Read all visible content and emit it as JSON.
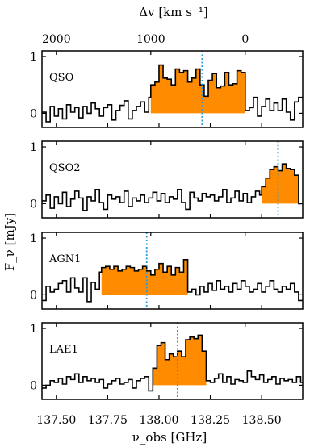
{
  "figure": {
    "top_axis_label": "Δv [km s⁻¹]",
    "bottom_axis_label": "ν_obs [GHz]",
    "y_axis_label": "F_ν [mJy]"
  },
  "colors": {
    "fill": "#ff8c00",
    "line": "#000000",
    "marker": "#2b9bdc"
  },
  "chart_data": {
    "type": "line",
    "x_range": [
      137.43,
      138.7
    ],
    "x_ticks": [
      "137.50",
      "137.75",
      "138.00",
      "138.25",
      "138.50"
    ],
    "top_ticks": [
      "2000",
      "1000",
      "0"
    ],
    "top_tick_positions_ghz": [
      137.5,
      137.96,
      138.42
    ],
    "y_range": [
      -0.25,
      1.1
    ],
    "y_ticks": [
      "0",
      "1"
    ],
    "panels": [
      {
        "name": "QSO",
        "marker_ghz": 138.21,
        "fill_range": [
          137.96,
          138.42
        ],
        "x": [
          137.43,
          137.45,
          137.47,
          137.49,
          137.51,
          137.53,
          137.55,
          137.57,
          137.59,
          137.61,
          137.63,
          137.65,
          137.67,
          137.69,
          137.71,
          137.73,
          137.75,
          137.77,
          137.79,
          137.81,
          137.83,
          137.85,
          137.87,
          137.89,
          137.91,
          137.93,
          137.95,
          137.96,
          137.98,
          138.0,
          138.02,
          138.04,
          138.06,
          138.08,
          138.1,
          138.12,
          138.14,
          138.16,
          138.18,
          138.2,
          138.22,
          138.24,
          138.26,
          138.28,
          138.3,
          138.32,
          138.34,
          138.36,
          138.38,
          138.4,
          138.42,
          138.44,
          138.46,
          138.48,
          138.5,
          138.52,
          138.54,
          138.56,
          138.58,
          138.6,
          138.62,
          138.64,
          138.66,
          138.68
        ],
        "y": [
          0.02,
          -0.15,
          0.12,
          -0.05,
          0.08,
          -0.1,
          0.15,
          0.02,
          0.1,
          -0.08,
          0.12,
          0.0,
          0.18,
          0.08,
          -0.05,
          0.1,
          0.15,
          -0.12,
          0.05,
          0.14,
          0.22,
          -0.1,
          0.05,
          0.12,
          0.2,
          0.02,
          0.28,
          0.5,
          0.55,
          0.85,
          0.62,
          0.6,
          0.5,
          0.78,
          0.72,
          0.75,
          0.55,
          0.62,
          0.78,
          0.5,
          0.3,
          0.58,
          0.7,
          0.45,
          0.48,
          0.72,
          0.5,
          0.52,
          0.75,
          0.72,
          0.05,
          0.1,
          0.28,
          -0.05,
          0.12,
          0.25,
          0.05,
          0.18,
          0.05,
          0.25,
          0.02,
          -0.12,
          0.2,
          0.28
        ]
      },
      {
        "name": "QSO2",
        "marker_ghz": 138.58,
        "fill_range": [
          138.5,
          138.68
        ],
        "x": [
          137.43,
          137.45,
          137.47,
          137.49,
          137.51,
          137.53,
          137.55,
          137.57,
          137.59,
          137.61,
          137.63,
          137.65,
          137.67,
          137.69,
          137.71,
          137.73,
          137.75,
          137.77,
          137.79,
          137.81,
          137.83,
          137.85,
          137.87,
          137.89,
          137.91,
          137.93,
          137.95,
          137.97,
          137.99,
          138.01,
          138.03,
          138.05,
          138.07,
          138.09,
          138.11,
          138.13,
          138.15,
          138.17,
          138.19,
          138.21,
          138.23,
          138.25,
          138.27,
          138.29,
          138.31,
          138.33,
          138.35,
          138.37,
          138.39,
          138.41,
          138.43,
          138.45,
          138.47,
          138.49,
          138.5,
          138.52,
          138.54,
          138.56,
          138.58,
          138.6,
          138.62,
          138.64,
          138.66,
          138.68
        ],
        "y": [
          0.05,
          0.15,
          -0.08,
          0.12,
          0.0,
          0.2,
          -0.05,
          0.08,
          0.22,
          0.1,
          -0.12,
          0.12,
          0.05,
          0.25,
          0.02,
          -0.1,
          0.15,
          0.08,
          0.12,
          0.02,
          0.22,
          -0.05,
          0.1,
          0.05,
          0.15,
          0.02,
          0.1,
          0.2,
          0.05,
          0.18,
          0.02,
          0.12,
          0.08,
          0.25,
          0.02,
          -0.1,
          0.2,
          0.1,
          0.05,
          0.18,
          0.12,
          0.15,
          0.05,
          0.12,
          0.25,
          0.02,
          0.1,
          0.22,
          0.05,
          0.18,
          0.02,
          0.12,
          0.22,
          0.15,
          0.3,
          0.45,
          0.6,
          0.65,
          0.58,
          0.7,
          0.62,
          0.6,
          0.5,
          0.0
        ]
      },
      {
        "name": "AGN1",
        "marker_ghz": 137.94,
        "fill_range": [
          137.72,
          138.14
        ],
        "x": [
          137.43,
          137.45,
          137.47,
          137.49,
          137.51,
          137.53,
          137.55,
          137.57,
          137.59,
          137.61,
          137.63,
          137.65,
          137.67,
          137.69,
          137.71,
          137.72,
          137.74,
          137.76,
          137.78,
          137.8,
          137.82,
          137.84,
          137.86,
          137.88,
          137.9,
          137.92,
          137.94,
          137.96,
          137.98,
          138.0,
          138.02,
          138.04,
          138.06,
          138.08,
          138.1,
          138.12,
          138.14,
          138.16,
          138.18,
          138.2,
          138.22,
          138.24,
          138.26,
          138.28,
          138.3,
          138.32,
          138.34,
          138.36,
          138.38,
          138.4,
          138.42,
          138.44,
          138.46,
          138.48,
          138.5,
          138.52,
          138.54,
          138.56,
          138.58,
          138.6,
          138.62,
          138.64,
          138.66,
          138.68
        ],
        "y": [
          -0.1,
          0.15,
          0.05,
          0.1,
          0.2,
          0.25,
          0.05,
          0.3,
          0.12,
          0.05,
          0.3,
          -0.12,
          0.22,
          0.1,
          0.4,
          0.48,
          0.5,
          0.45,
          0.5,
          0.42,
          0.45,
          0.5,
          0.48,
          0.42,
          0.45,
          0.5,
          0.42,
          0.35,
          0.45,
          0.55,
          0.4,
          0.5,
          0.35,
          0.48,
          0.4,
          0.62,
          0.05,
          0.1,
          0.0,
          0.15,
          0.05,
          0.2,
          0.08,
          0.25,
          0.1,
          0.15,
          0.05,
          0.2,
          0.1,
          0.25,
          0.15,
          0.05,
          0.1,
          0.2,
          0.05,
          0.15,
          0.25,
          0.1,
          0.05,
          0.15,
          0.1,
          0.2,
          0.05,
          -0.1
        ]
      },
      {
        "name": "LAE1",
        "marker_ghz": 138.09,
        "fill_range": [
          137.97,
          138.23
        ],
        "x": [
          137.43,
          137.45,
          137.47,
          137.49,
          137.51,
          137.53,
          137.55,
          137.57,
          137.59,
          137.61,
          137.63,
          137.65,
          137.67,
          137.69,
          137.71,
          137.73,
          137.75,
          137.77,
          137.79,
          137.81,
          137.83,
          137.85,
          137.87,
          137.89,
          137.91,
          137.93,
          137.95,
          137.97,
          137.99,
          138.01,
          138.03,
          138.05,
          138.07,
          138.09,
          138.11,
          138.13,
          138.15,
          138.17,
          138.19,
          138.21,
          138.23,
          138.25,
          138.27,
          138.29,
          138.31,
          138.33,
          138.35,
          138.37,
          138.39,
          138.41,
          138.43,
          138.45,
          138.47,
          138.49,
          138.51,
          138.53,
          138.55,
          138.57,
          138.59,
          138.61,
          138.63,
          138.65,
          138.67,
          138.69
        ],
        "y": [
          -0.05,
          0.0,
          0.08,
          0.05,
          0.12,
          0.02,
          0.15,
          0.1,
          0.2,
          0.05,
          0.15,
          0.08,
          0.12,
          0.05,
          0.1,
          -0.05,
          0.02,
          0.08,
          0.12,
          0.02,
          0.05,
          0.1,
          -0.05,
          0.08,
          0.12,
          0.15,
          -0.1,
          0.3,
          0.7,
          0.75,
          0.45,
          0.55,
          0.5,
          0.6,
          0.5,
          0.8,
          0.85,
          0.82,
          0.88,
          0.6,
          0.08,
          0.05,
          0.12,
          0.2,
          0.05,
          0.15,
          0.02,
          0.1,
          0.08,
          0.05,
          0.25,
          0.15,
          0.1,
          0.18,
          0.05,
          0.1,
          0.15,
          0.02,
          0.12,
          0.08,
          0.1,
          0.05,
          0.15,
          0.05
        ]
      }
    ]
  }
}
